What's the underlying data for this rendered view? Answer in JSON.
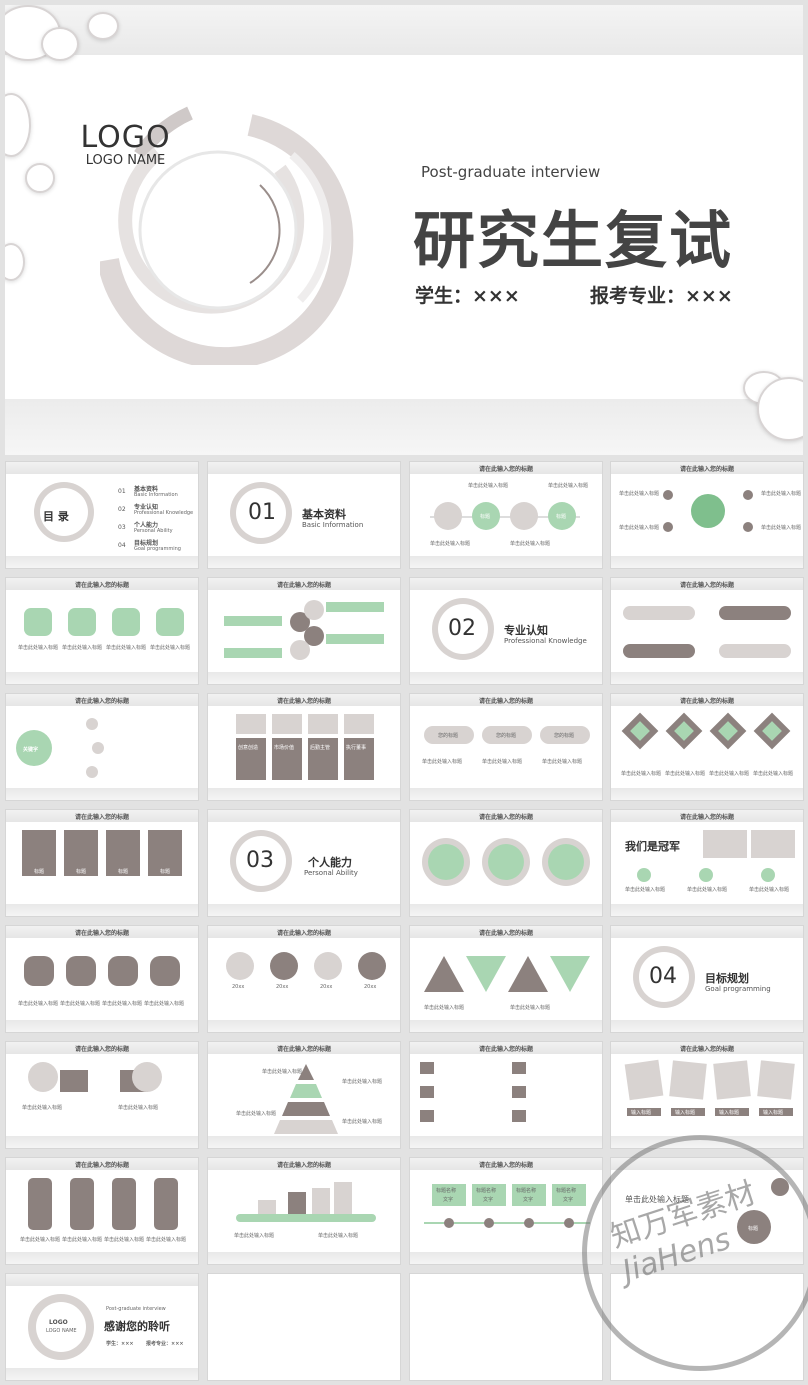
{
  "hero": {
    "logo": "LOGO",
    "logo_name": "LOGO NAME",
    "subtitle": "Post-graduate interview",
    "title": "研究生复试",
    "student": "学生：×××",
    "major": "报考专业：×××"
  },
  "common": {
    "slide_title": "请在此输入您的标题",
    "click_title": "单击此处输入标题"
  },
  "toc": {
    "title": "目 录",
    "items": [
      {
        "num": "01",
        "cn": "基本资料",
        "en": "Basic Information"
      },
      {
        "num": "02",
        "cn": "专业认知",
        "en": "Professional Knowledge"
      },
      {
        "num": "03",
        "cn": "个人能力",
        "en": "Personal Ability"
      },
      {
        "num": "04",
        "cn": "目标规划",
        "en": "Goal programming"
      }
    ]
  },
  "sections": [
    {
      "num": "01",
      "cn": "基本资料",
      "en": "Basic Information"
    },
    {
      "num": "02",
      "cn": "专业认知",
      "en": "Professional Knowledge"
    },
    {
      "num": "03",
      "cn": "个人能力",
      "en": "Personal Ability"
    },
    {
      "num": "04",
      "cn": "目标规划",
      "en": "Goal programming"
    }
  ],
  "misc": {
    "tag_title": "标题",
    "keyword": "关键字",
    "your_title": "您的标题",
    "champion": "我们是冠军",
    "year": "20xx",
    "words": [
      "创意创造",
      "市场价值",
      "后勤主管",
      "执行董事"
    ],
    "input_title": "输入标题",
    "tag_name": "标题名称",
    "text": "文字",
    "click_here": "单击此处输入标题"
  },
  "ending": {
    "logo": "LOGO",
    "logo_name": "LOGO NAME",
    "subtitle": "Post-graduate interview",
    "thanks": "感谢您的聆听",
    "student": "学生：×××",
    "major": "报考专业：×××"
  },
  "watermark": {
    "cn": "知万军素材",
    "en": "JiaHens"
  }
}
